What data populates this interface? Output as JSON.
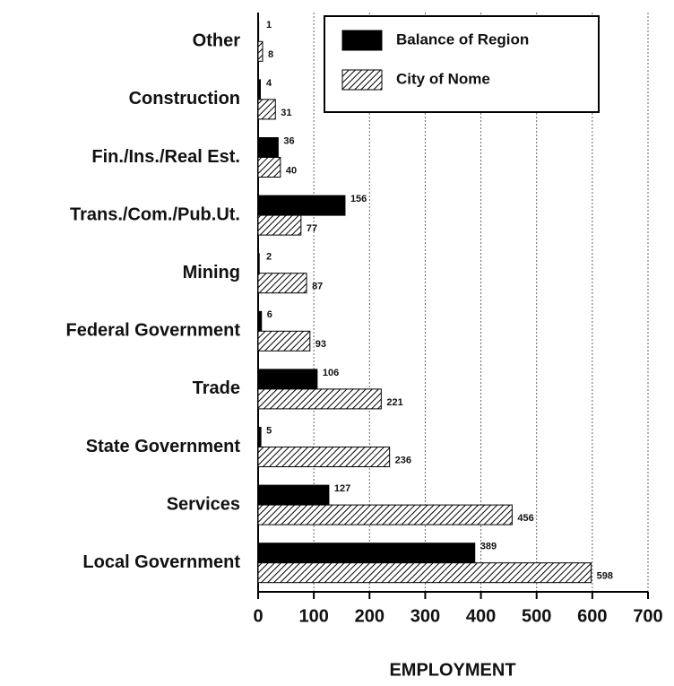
{
  "chart_data": {
    "type": "hbar",
    "x_label": "EMPLOYMENT",
    "categories": [
      "Other",
      "Construction",
      "Fin./Ins./Real Est.",
      "Trans./Com./Pub.Ut.",
      "Mining",
      "Federal Government",
      "Trade",
      "State Government",
      "Services",
      "Local Government"
    ],
    "series": [
      {
        "name": "Balance of Region",
        "color": "#000000",
        "values": [
          1,
          4,
          36,
          156,
          2,
          6,
          106,
          5,
          127,
          389
        ]
      },
      {
        "name": "City of Nome",
        "color": "#000000",
        "pattern": "hatch",
        "values": [
          8,
          31,
          40,
          77,
          87,
          93,
          221,
          236,
          456,
          598
        ]
      }
    ],
    "xlim": [
      0,
      700
    ],
    "xticks": [
      0,
      100,
      200,
      300,
      400,
      500,
      600,
      700
    ],
    "grid": true,
    "legend": "upper right"
  }
}
